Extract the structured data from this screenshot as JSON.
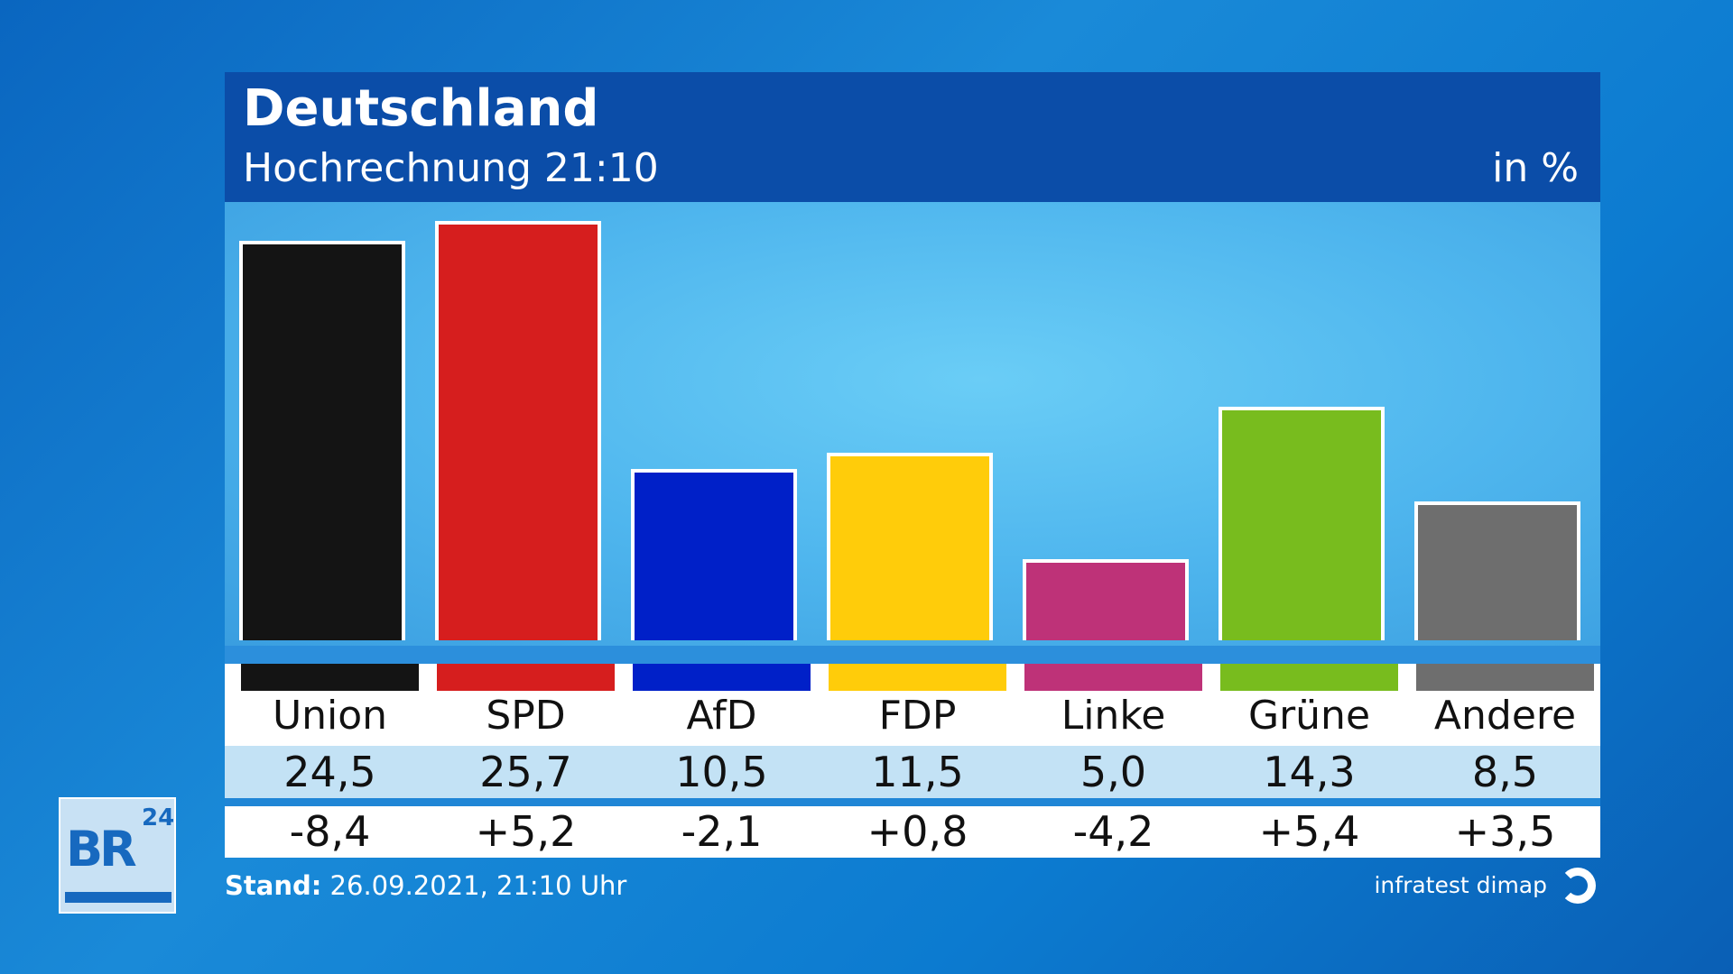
{
  "chart_data": {
    "type": "bar",
    "title": "Deutschland",
    "subtitle": "Hochrechnung 21:10",
    "unit": "in %",
    "categories": [
      "Union",
      "SPD",
      "AfD",
      "FDP",
      "Linke",
      "Grüne",
      "Andere"
    ],
    "values": [
      24.5,
      25.7,
      10.5,
      11.5,
      5.0,
      14.3,
      8.5
    ],
    "value_labels": [
      "24,5",
      "25,7",
      "10,5",
      "11,5",
      "5,0",
      "14,3",
      "8,5"
    ],
    "changes": [
      "-8,4",
      "+5,2",
      "-2,1",
      "+0,8",
      "-4,2",
      "+5,4",
      "+3,5"
    ],
    "colors": [
      "#141414",
      "#d61e1e",
      "#0020c8",
      "#ffcc0a",
      "#be3278",
      "#78bc1e",
      "#6e6e6e"
    ],
    "ylim": [
      0,
      27
    ]
  },
  "footer": {
    "stand_label": "Stand:",
    "stand_value": "26.09.2021, 21:10 Uhr",
    "source": "infratest dimap"
  },
  "logo": {
    "text": "BR",
    "sup": "24"
  }
}
